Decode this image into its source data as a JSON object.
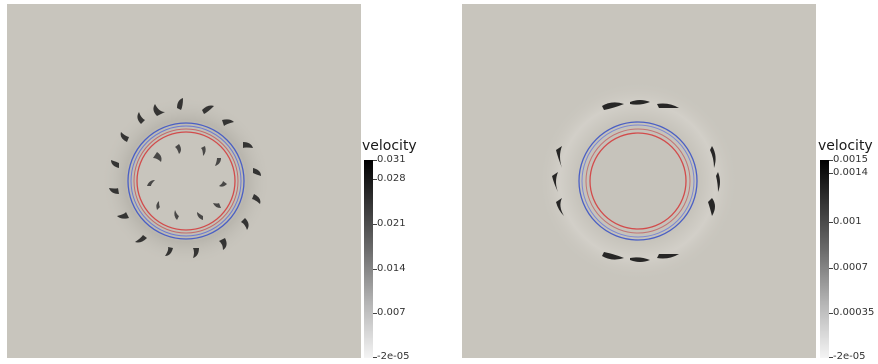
{
  "panels": [
    {
      "colorbar": {
        "title": "velocity",
        "labels": [
          "0.031",
          "0.028",
          "0.021",
          "0.014",
          "0.007",
          "-2e-05"
        ]
      }
    },
    {
      "colorbar": {
        "title": "velocity",
        "labels": [
          "0.0015",
          "0.0014",
          "0.001",
          "0.0007",
          "0.00035",
          "-2e-05"
        ]
      }
    }
  ],
  "colors": {
    "background": "#c8c5bd",
    "ring_blue": "#4a5fc4",
    "ring_red": "#d24b4b"
  }
}
